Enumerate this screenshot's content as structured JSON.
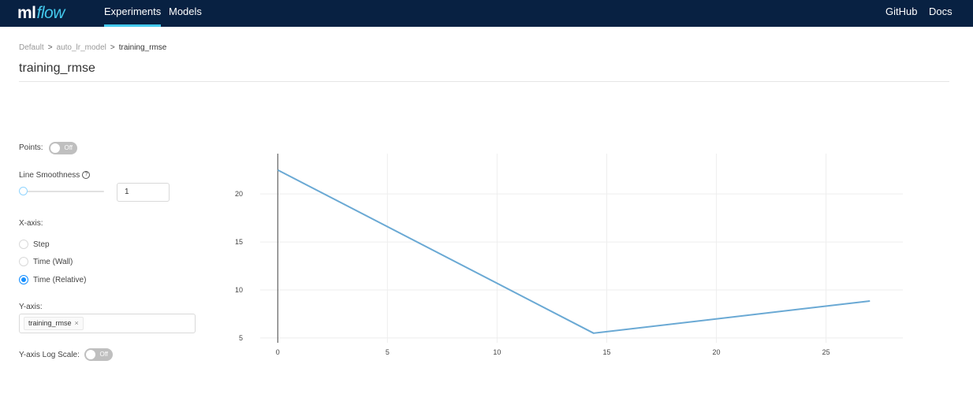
{
  "nav": {
    "logo_ml": "ml",
    "logo_flow": "flow",
    "experiments": "Experiments",
    "models": "Models",
    "github": "GitHub",
    "docs": "Docs"
  },
  "breadcrumb": {
    "items": [
      "Default",
      "auto_lr_model",
      "training_rmse"
    ],
    "separator": ">"
  },
  "page_title": "training_rmse",
  "controls": {
    "points_label": "Points:",
    "points_toggle": "Off",
    "smoothness_label": "Line Smoothness",
    "smoothness_help_icon": "question-circle-icon",
    "smoothness_value": "1",
    "smoothness_level": 0,
    "xaxis_label": "X-axis:",
    "xaxis_options": [
      "Step",
      "Time (Wall)",
      "Time (Relative)"
    ],
    "xaxis_selected": "Time (Relative)",
    "yaxis_label": "Y-axis:",
    "yaxis_tags": [
      "training_rmse"
    ],
    "log_scale_label": "Y-axis Log Scale:",
    "log_scale_toggle": "Off"
  },
  "colors": {
    "nav_bg": "#082142",
    "accent": "#43c9ed",
    "primary": "#1890ff",
    "line": "#6aa9d4"
  },
  "chart_data": {
    "type": "line",
    "series": [
      {
        "x": [
          0,
          14.4,
          27
        ],
        "y": [
          22.5,
          5.5,
          8.85
        ]
      }
    ],
    "xlim": [
      -0.8,
      28.5
    ],
    "ylim": [
      4.5,
      24.2
    ],
    "xticks": [
      0,
      5,
      10,
      15,
      20,
      25
    ],
    "yticks": [
      5,
      10,
      15,
      20
    ],
    "grid": true
  }
}
